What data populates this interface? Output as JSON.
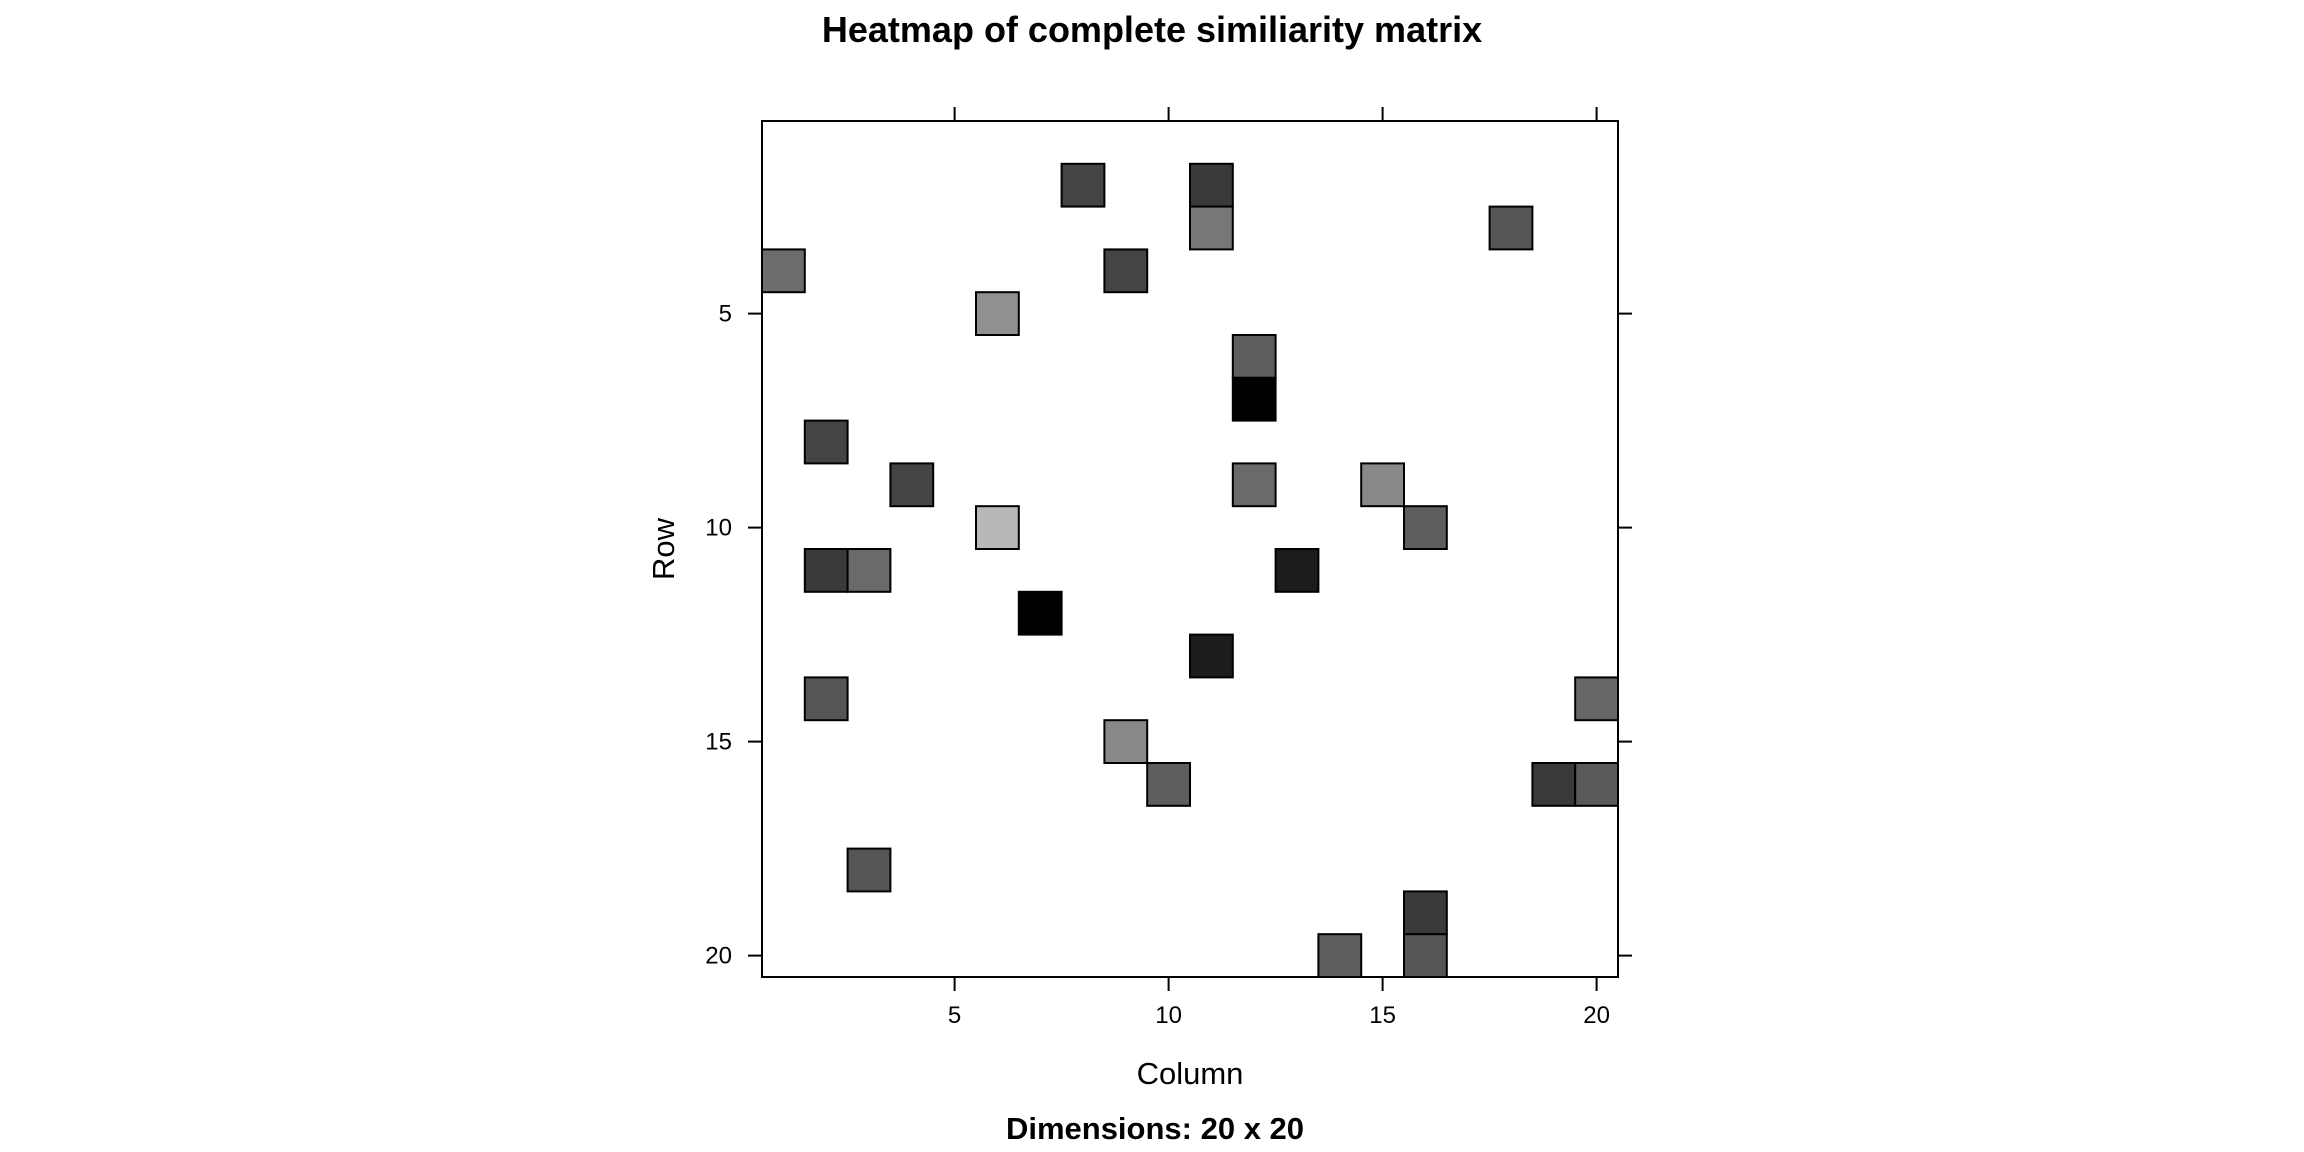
{
  "chart_data": {
    "type": "heatmap",
    "title": "Heatmap of complete similiarity matrix",
    "subtitle": "Dimensions: 20 x 20",
    "xlabel": "Column",
    "ylabel": "Row",
    "nrows": 20,
    "ncols": 20,
    "x_ticks": [
      5,
      10,
      15,
      20
    ],
    "y_ticks": [
      5,
      10,
      15,
      20
    ],
    "y_reversed": true,
    "cells": [
      {
        "row": 2,
        "col": 8,
        "color": "#444444"
      },
      {
        "row": 2,
        "col": 11,
        "color": "#3a3a3a"
      },
      {
        "row": 3,
        "col": 11,
        "color": "#777777"
      },
      {
        "row": 3,
        "col": 18,
        "color": "#555555"
      },
      {
        "row": 4,
        "col": 1,
        "color": "#6c6c6c"
      },
      {
        "row": 4,
        "col": 9,
        "color": "#444444"
      },
      {
        "row": 5,
        "col": 6,
        "color": "#909090"
      },
      {
        "row": 6,
        "col": 12,
        "color": "#5e5e5e"
      },
      {
        "row": 7,
        "col": 12,
        "color": "#000000"
      },
      {
        "row": 8,
        "col": 2,
        "color": "#444444"
      },
      {
        "row": 9,
        "col": 4,
        "color": "#444444"
      },
      {
        "row": 9,
        "col": 12,
        "color": "#6a6a6a"
      },
      {
        "row": 9,
        "col": 15,
        "color": "#888888"
      },
      {
        "row": 10,
        "col": 6,
        "color": "#b8b8b8"
      },
      {
        "row": 10,
        "col": 16,
        "color": "#5e5e5e"
      },
      {
        "row": 11,
        "col": 2,
        "color": "#3a3a3a"
      },
      {
        "row": 11,
        "col": 3,
        "color": "#6a6a6a"
      },
      {
        "row": 11,
        "col": 13,
        "color": "#1c1c1c"
      },
      {
        "row": 12,
        "col": 7,
        "color": "#000000"
      },
      {
        "row": 13,
        "col": 11,
        "color": "#1c1c1c"
      },
      {
        "row": 14,
        "col": 2,
        "color": "#555555"
      },
      {
        "row": 14,
        "col": 20,
        "color": "#666666"
      },
      {
        "row": 15,
        "col": 9,
        "color": "#888888"
      },
      {
        "row": 16,
        "col": 10,
        "color": "#5e5e5e"
      },
      {
        "row": 16,
        "col": 19,
        "color": "#3a3a3a"
      },
      {
        "row": 16,
        "col": 20,
        "color": "#5a5a5a"
      },
      {
        "row": 18,
        "col": 3,
        "color": "#555555"
      },
      {
        "row": 19,
        "col": 16,
        "color": "#3a3a3a"
      },
      {
        "row": 20,
        "col": 14,
        "color": "#5e5e5e"
      },
      {
        "row": 20,
        "col": 16,
        "color": "#555555"
      }
    ]
  }
}
